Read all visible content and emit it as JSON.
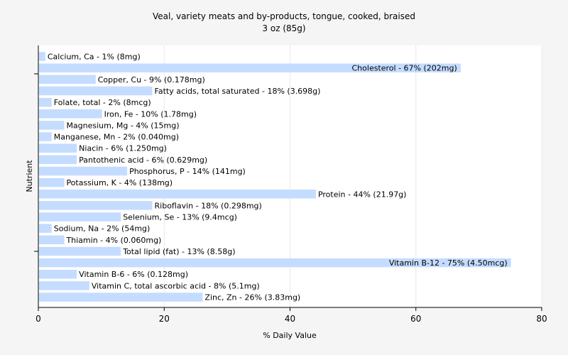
{
  "chart_data": {
    "type": "bar",
    "orientation": "horizontal",
    "title": "Veal, variety meats and by-products, tongue, cooked, braised",
    "subtitle": "3 oz (85g)",
    "xlabel": "% Daily Value",
    "ylabel": "Nutrient",
    "xlim": [
      0,
      80
    ],
    "xticks": [
      0,
      20,
      40,
      60,
      80
    ],
    "grid": true,
    "bar_color": "#c4dcff",
    "background": "#f5f5f5",
    "plot_background": "#ffffff",
    "categories": [
      "Calcium, Ca",
      "Cholesterol",
      "Copper, Cu",
      "Fatty acids, total saturated",
      "Folate, total",
      "Iron, Fe",
      "Magnesium, Mg",
      "Manganese, Mn",
      "Niacin",
      "Pantothenic acid",
      "Phosphorus, P",
      "Potassium, K",
      "Protein",
      "Riboflavin",
      "Selenium, Se",
      "Sodium, Na",
      "Thiamin",
      "Total lipid (fat)",
      "Vitamin B-12",
      "Vitamin B-6",
      "Vitamin C, total ascorbic acid",
      "Zinc, Zn"
    ],
    "values": [
      1,
      67,
      9,
      18,
      2,
      10,
      4,
      2,
      6,
      6,
      14,
      4,
      44,
      18,
      13,
      2,
      4,
      13,
      75,
      6,
      8,
      26
    ],
    "labels": [
      "Calcium, Ca - 1% (8mg)",
      "Cholesterol - 67% (202mg)",
      "Copper, Cu - 9% (0.178mg)",
      "Fatty acids, total saturated - 18% (3.698g)",
      "Folate, total - 2% (8mcg)",
      "Iron, Fe - 10% (1.78mg)",
      "Magnesium, Mg - 4% (15mg)",
      "Manganese, Mn - 2% (0.040mg)",
      "Niacin - 6% (1.250mg)",
      "Pantothenic acid - 6% (0.629mg)",
      "Phosphorus, P - 14% (141mg)",
      "Potassium, K - 4% (138mg)",
      "Protein - 44% (21.97g)",
      "Riboflavin - 18% (0.298mg)",
      "Selenium, Se - 13% (9.4mcg)",
      "Sodium, Na - 2% (54mg)",
      "Thiamin - 4% (0.060mg)",
      "Total lipid (fat) - 13% (8.58g)",
      "Vitamin B-12 - 75% (4.50mcg)",
      "Vitamin B-6 - 6% (0.128mg)",
      "Vitamin C, total ascorbic acid - 8% (5.1mg)",
      "Zinc, Zn - 26% (3.83mg)"
    ]
  }
}
